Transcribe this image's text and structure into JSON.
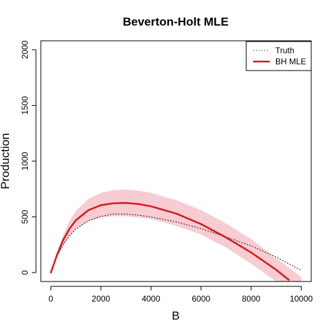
{
  "chart_data": {
    "type": "line",
    "title": "Beverton-Holt MLE",
    "xlabel": "B",
    "ylabel": "Production",
    "xlim": [
      -400,
      10400
    ],
    "ylim": [
      -80,
      2080
    ],
    "xticks": [
      "0",
      "2000",
      "4000",
      "6000",
      "8000",
      "10000"
    ],
    "yticks": [
      "0",
      "500",
      "1000",
      "1500",
      "2000"
    ],
    "grid": false,
    "legend_position": "top-right",
    "colors": {
      "truth": "#000000",
      "mle": "#d7191c",
      "band": "#f8ccd3"
    },
    "series": [
      {
        "name": "Truth",
        "style": "dotted",
        "x": [
          0,
          250,
          500,
          750,
          1000,
          1500,
          2000,
          2500,
          3000,
          3500,
          4000,
          5000,
          6000,
          7000,
          8000,
          9000,
          10000
        ],
        "y": [
          0,
          150,
          255,
          330,
          390,
          465,
          505,
          525,
          525,
          515,
          500,
          455,
          395,
          320,
          240,
          140,
          20
        ]
      },
      {
        "name": "BH MLE",
        "style": "solid",
        "x": [
          0,
          250,
          500,
          750,
          1000,
          1500,
          2000,
          2500,
          3000,
          3500,
          4000,
          5000,
          6000,
          7000,
          8000,
          9000,
          9500
        ],
        "y": [
          0,
          160,
          295,
          395,
          470,
          560,
          605,
          622,
          625,
          615,
          595,
          530,
          435,
          315,
          180,
          25,
          -65
        ]
      }
    ],
    "confidence_band": {
      "x": [
        0,
        250,
        500,
        750,
        1000,
        1500,
        2000,
        2500,
        3000,
        3500,
        4000,
        5000,
        6000,
        7000,
        8000,
        9000,
        10000
      ],
      "lower": [
        0,
        135,
        240,
        325,
        390,
        460,
        495,
        505,
        505,
        495,
        480,
        420,
        340,
        225,
        80,
        -80,
        -80
      ],
      "upper": [
        0,
        185,
        345,
        465,
        555,
        660,
        715,
        740,
        745,
        735,
        715,
        650,
        560,
        440,
        300,
        130,
        -40
      ]
    }
  }
}
